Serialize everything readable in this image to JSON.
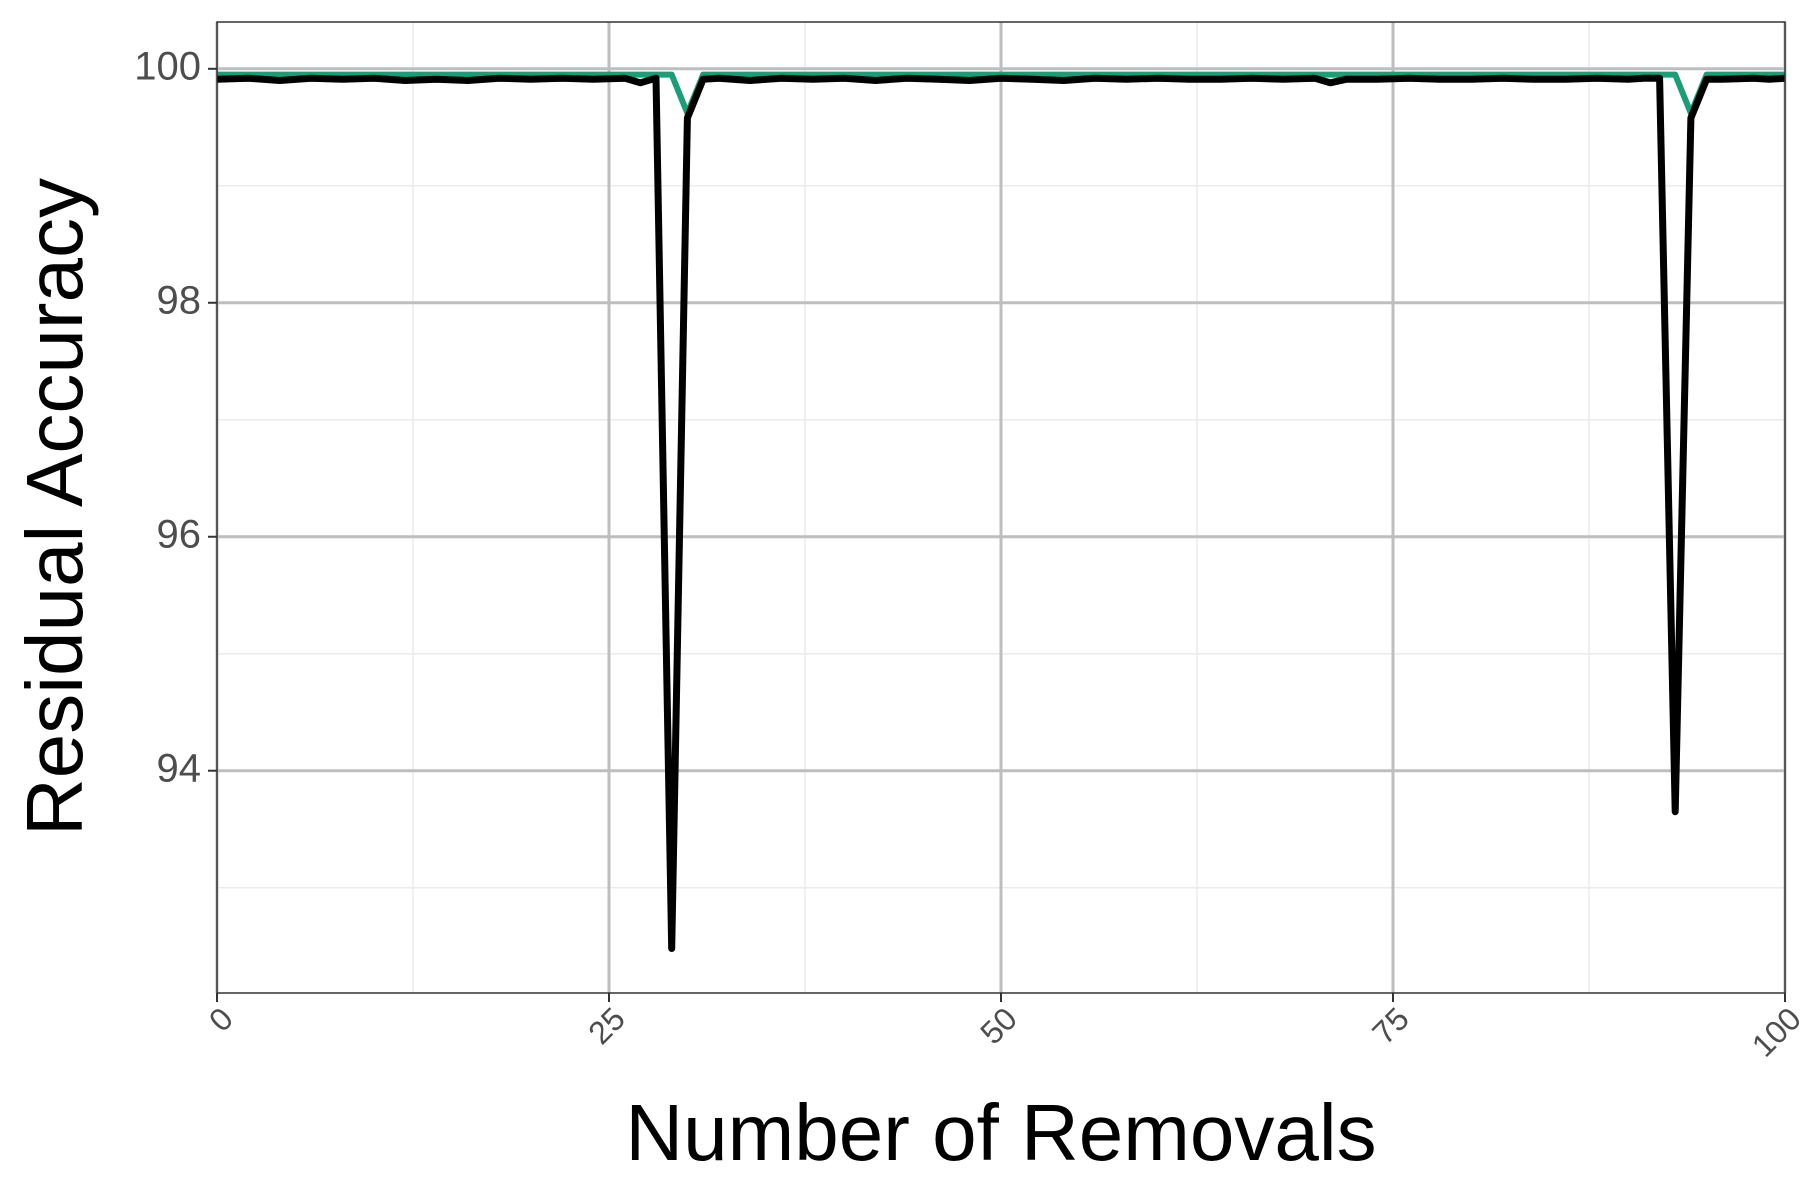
{
  "chart_data": {
    "type": "line",
    "xlabel": "Number of Removals",
    "ylabel": "Residual Accuracy",
    "xlim": [
      0,
      100
    ],
    "ylim": [
      92.1,
      100.4
    ],
    "x_ticks": [
      "0",
      "25",
      "50",
      "75",
      "100"
    ],
    "x_tick_values": [
      0,
      25,
      50,
      75,
      100
    ],
    "y_ticks": [
      "94",
      "96",
      "98",
      "100"
    ],
    "y_tick_values": [
      94,
      96,
      98,
      100
    ],
    "grid": true,
    "series": [
      {
        "color": "#1b9e77",
        "x": [
          0,
          28,
          29,
          30,
          31,
          92,
          93,
          94,
          95,
          100
        ],
        "y": [
          99.95,
          99.95,
          99.95,
          99.62,
          99.95,
          99.95,
          99.95,
          99.62,
          99.95,
          99.95
        ]
      },
      {
        "color": "#000000",
        "x": [
          0,
          2,
          4,
          6,
          8,
          10,
          12,
          14,
          16,
          18,
          20,
          22,
          24,
          26,
          27,
          28,
          29,
          30,
          31,
          32,
          34,
          36,
          38,
          40,
          42,
          44,
          46,
          48,
          50,
          52,
          54,
          56,
          58,
          60,
          62,
          64,
          66,
          68,
          70,
          71,
          72,
          74,
          76,
          78,
          80,
          82,
          84,
          86,
          88,
          90,
          91,
          92,
          93,
          94,
          95,
          96,
          98,
          99,
          100
        ],
        "y": [
          99.91,
          99.92,
          99.9,
          99.92,
          99.91,
          99.92,
          99.9,
          99.91,
          99.9,
          99.92,
          99.91,
          99.92,
          99.91,
          99.92,
          99.88,
          99.92,
          92.48,
          99.58,
          99.91,
          99.92,
          99.9,
          99.92,
          99.91,
          99.92,
          99.9,
          99.92,
          99.91,
          99.9,
          99.92,
          99.91,
          99.9,
          99.92,
          99.91,
          99.92,
          99.91,
          99.91,
          99.92,
          99.91,
          99.92,
          99.88,
          99.91,
          99.91,
          99.92,
          99.91,
          99.91,
          99.92,
          99.91,
          99.91,
          99.92,
          99.91,
          99.92,
          99.92,
          93.65,
          99.58,
          99.91,
          99.91,
          99.92,
          99.91,
          99.92
        ]
      }
    ]
  }
}
